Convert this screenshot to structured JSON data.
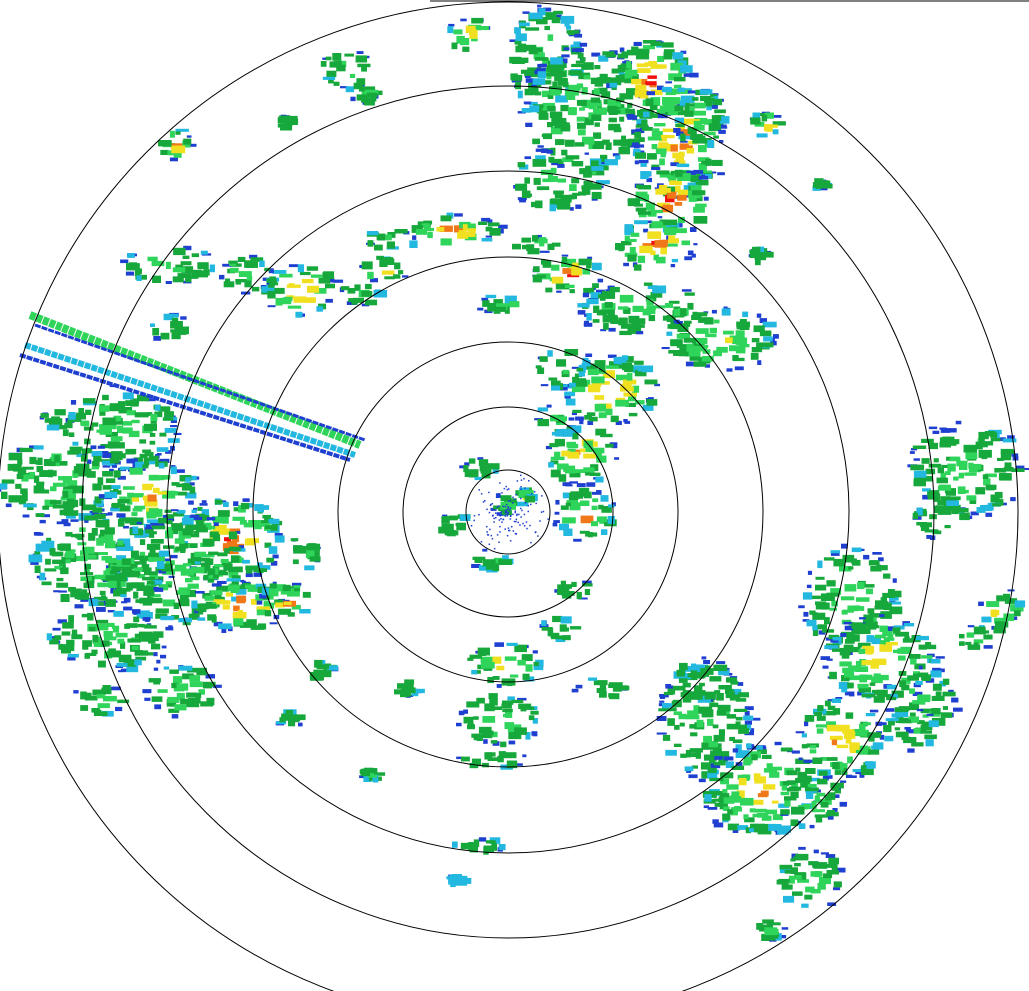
{
  "radar": {
    "type": "ppi-reflectivity",
    "range_rings": 7,
    "background": "#ffffff",
    "ring_color": "#000000",
    "palette": {
      "weak": "#1f3fd0",
      "light": "#22b8e0",
      "moderate": "#17a83c",
      "moderate_high": "#2fd45a",
      "heavy": "#f0e020",
      "very_heavy": "#f07818",
      "intense": "#f01010"
    }
  }
}
